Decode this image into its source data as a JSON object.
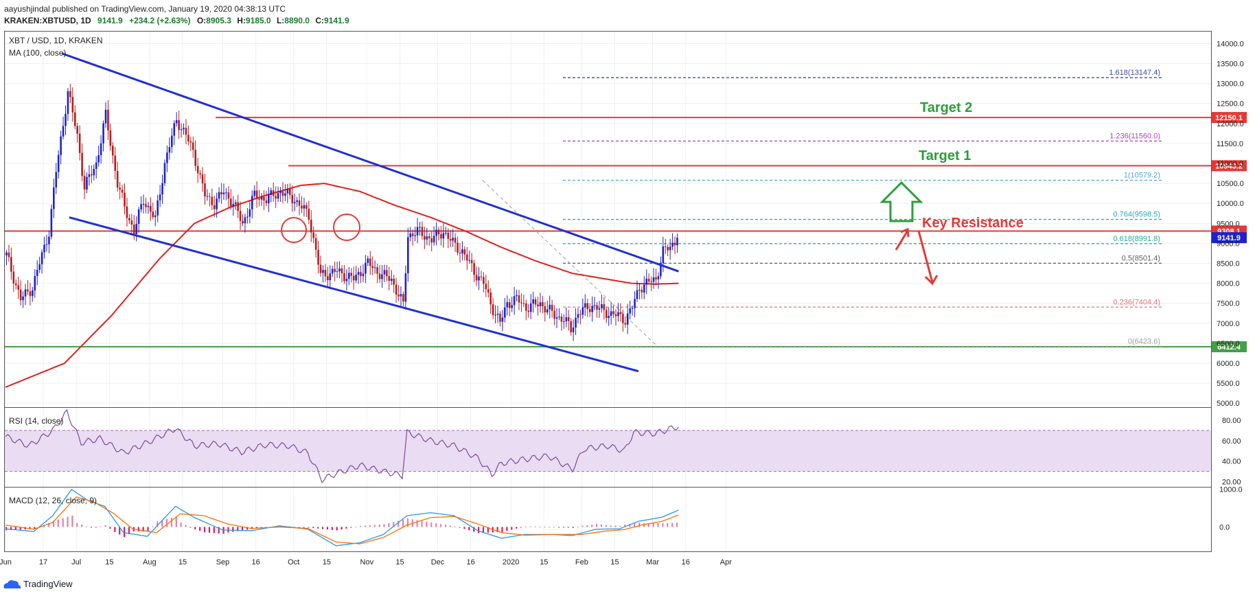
{
  "header": {
    "publisher_line": "aayushjindal published on TradingView.com, January 19, 2020 04:38:13 UTC",
    "symbol": "KRAKEN:XBTUSD, 1D",
    "last": "9141.9",
    "change": "+234.2 (+2.63%)",
    "open_label": "O:",
    "open": "8905.3",
    "high_label": "H:",
    "high": "9185.0",
    "low_label": "L:",
    "low": "8890.0",
    "close_label": "C:",
    "close": "9141.9"
  },
  "main_pane": {
    "legend_symbol": "XBT / USD, 1D, KRAKEN",
    "legend_ma": "MA (100, close)"
  },
  "rsi_pane": {
    "legend": "RSI (14, close)",
    "ticks": [
      "80.00",
      "60.00",
      "40.00",
      "20.00"
    ]
  },
  "macd_pane": {
    "legend": "MACD (12, 26, close, 9)",
    "ticks": [
      "1000.0",
      "0.0"
    ]
  },
  "annotations": {
    "target2": "Target 2",
    "target1": "Target 1",
    "key_resistance": "Key Resistance"
  },
  "footer": {
    "brand": "TradingView"
  },
  "colors": {
    "up": "#1e22cc",
    "down": "#b71c1c",
    "trend": "#1f2ed6",
    "ma": "#e0201b",
    "resistance": "#e53935",
    "support": "#43a047",
    "target_text": "#2e9d3a",
    "rsi": "#7a4b99",
    "rsi_band": "#eadcf3",
    "macd": "#2196f3",
    "signal": "#ff6d00",
    "hist": "#d81b60"
  },
  "chart_data": {
    "type": "candlestick",
    "symbol": "XBT / USD, 1D, KRAKEN",
    "x_tick_labels": [
      "Jun",
      "17",
      "Jul",
      "15",
      "Aug",
      "15",
      "Sep",
      "16",
      "Oct",
      "15",
      "Nov",
      "15",
      "Dec",
      "16",
      "2020",
      "15",
      "Feb",
      "15",
      "Mar",
      "16",
      "Apr"
    ],
    "y_ticks": [
      "14000.0",
      "13500.0",
      "13000.0",
      "12500.0",
      "12000.0",
      "11500.0",
      "11000.0",
      "10500.0",
      "10000.0",
      "9500.0",
      "9000.0",
      "8500.0",
      "8000.0",
      "7500.0",
      "7000.0",
      "6500.0",
      "6000.0",
      "5500.0",
      "5000.0"
    ],
    "ylim": [
      4900,
      14300
    ],
    "price_path": [
      [
        0,
        8700
      ],
      [
        6,
        7600
      ],
      [
        11,
        7900
      ],
      [
        18,
        9300
      ],
      [
        21,
        10800
      ],
      [
        26,
        12800
      ],
      [
        30,
        11700
      ],
      [
        33,
        10400
      ],
      [
        38,
        11000
      ],
      [
        42,
        12200
      ],
      [
        47,
        10500
      ],
      [
        50,
        9900
      ],
      [
        54,
        9300
      ],
      [
        58,
        10100
      ],
      [
        63,
        9600
      ],
      [
        67,
        11000
      ],
      [
        72,
        12100
      ],
      [
        76,
        11700
      ],
      [
        79,
        11300
      ],
      [
        84,
        10200
      ],
      [
        88,
        10000
      ],
      [
        92,
        10300
      ],
      [
        96,
        10000
      ],
      [
        100,
        9500
      ],
      [
        105,
        10200
      ],
      [
        110,
        10100
      ],
      [
        116,
        10300
      ],
      [
        122,
        10100
      ],
      [
        128,
        9700
      ],
      [
        133,
        8200
      ],
      [
        140,
        8300
      ],
      [
        147,
        8100
      ],
      [
        153,
        8500
      ],
      [
        159,
        8200
      ],
      [
        163,
        8100
      ],
      [
        168,
        7450
      ],
      [
        170,
        9200
      ],
      [
        174,
        9300
      ],
      [
        180,
        9100
      ],
      [
        185,
        9300
      ],
      [
        189,
        9000
      ],
      [
        193,
        8800
      ],
      [
        198,
        8300
      ],
      [
        202,
        8000
      ],
      [
        205,
        7500
      ],
      [
        209,
        7000
      ],
      [
        212,
        7500
      ],
      [
        216,
        7600
      ],
      [
        220,
        7400
      ],
      [
        226,
        7500
      ],
      [
        232,
        7200
      ],
      [
        236,
        7100
      ],
      [
        239,
        6850
      ],
      [
        242,
        7250
      ],
      [
        248,
        7450
      ],
      [
        253,
        7300
      ],
      [
        258,
        7200
      ],
      [
        262,
        7100
      ],
      [
        265,
        7400
      ],
      [
        268,
        7900
      ],
      [
        271,
        8000
      ],
      [
        275,
        8100
      ],
      [
        278,
        8800
      ],
      [
        281,
        8900
      ],
      [
        284,
        9141.9
      ]
    ],
    "moving_average_100": [
      [
        0,
        5400
      ],
      [
        25,
        6000
      ],
      [
        45,
        7200
      ],
      [
        65,
        8600
      ],
      [
        80,
        9500
      ],
      [
        95,
        9900
      ],
      [
        110,
        10200
      ],
      [
        125,
        10450
      ],
      [
        135,
        10500
      ],
      [
        150,
        10300
      ],
      [
        165,
        9950
      ],
      [
        180,
        9650
      ],
      [
        195,
        9300
      ],
      [
        210,
        8900
      ],
      [
        225,
        8550
      ],
      [
        240,
        8250
      ],
      [
        255,
        8100
      ],
      [
        265,
        8000
      ],
      [
        275,
        7980
      ],
      [
        285,
        8000
      ]
    ],
    "horizontal_levels": [
      {
        "label": "9308.1",
        "price": 9308.1,
        "role": "key resistance"
      },
      {
        "label": "10943.2",
        "price": 10943.2,
        "role": "target 1"
      },
      {
        "label": "12150.1",
        "price": 12150.1,
        "role": "target 2"
      },
      {
        "label": "6412.4",
        "price": 6412.4,
        "role": "support"
      }
    ],
    "last_price_label": "9141.9",
    "fibonacci": [
      {
        "label": "1.618(13147.4)",
        "price": 13147.4
      },
      {
        "label": "1.236(11560.0)",
        "price": 11560.0
      },
      {
        "label": "1(10579.2)",
        "price": 10579.2
      },
      {
        "label": "0.764(9598.5)",
        "price": 9598.5
      },
      {
        "label": "0.618(8991.8)",
        "price": 8991.8
      },
      {
        "label": "0.5(8501.4)",
        "price": 8501.4
      },
      {
        "label": "0.236(7404.4)",
        "price": 7404.4
      },
      {
        "label": "0(6423.6)",
        "price": 6423.6
      }
    ],
    "trendlines": [
      {
        "from": [
          24,
          13750
        ],
        "to": [
          285,
          8300
        ]
      },
      {
        "from": [
          27,
          9650
        ],
        "to": [
          268,
          5800
        ]
      }
    ],
    "rsi": {
      "ylim": [
        15,
        92
      ],
      "upper_band": 70,
      "lower_band": 30,
      "values": [
        [
          0,
          64
        ],
        [
          10,
          55
        ],
        [
          20,
          70
        ],
        [
          26,
          88
        ],
        [
          32,
          58
        ],
        [
          40,
          62
        ],
        [
          50,
          48
        ],
        [
          60,
          58
        ],
        [
          72,
          72
        ],
        [
          80,
          55
        ],
        [
          90,
          57
        ],
        [
          100,
          49
        ],
        [
          110,
          56
        ],
        [
          120,
          55
        ],
        [
          128,
          48
        ],
        [
          134,
          22
        ],
        [
          140,
          28
        ],
        [
          150,
          36
        ],
        [
          160,
          30
        ],
        [
          168,
          26
        ],
        [
          170,
          68
        ],
        [
          180,
          60
        ],
        [
          190,
          55
        ],
        [
          200,
          43
        ],
        [
          206,
          27
        ],
        [
          210,
          38
        ],
        [
          220,
          42
        ],
        [
          230,
          45
        ],
        [
          240,
          32
        ],
        [
          245,
          52
        ],
        [
          255,
          55
        ],
        [
          262,
          50
        ],
        [
          266,
          68
        ],
        [
          275,
          67
        ],
        [
          282,
          72
        ],
        [
          285,
          74
        ]
      ]
    },
    "macd": {
      "ylim": [
        -650,
        1050
      ],
      "macd_line": [
        [
          0,
          -50
        ],
        [
          12,
          -120
        ],
        [
          20,
          300
        ],
        [
          28,
          1000
        ],
        [
          35,
          700
        ],
        [
          42,
          550
        ],
        [
          50,
          -150
        ],
        [
          60,
          -250
        ],
        [
          72,
          550
        ],
        [
          80,
          250
        ],
        [
          92,
          -80
        ],
        [
          104,
          -100
        ],
        [
          116,
          30
        ],
        [
          128,
          -60
        ],
        [
          140,
          -500
        ],
        [
          150,
          -420
        ],
        [
          160,
          -200
        ],
        [
          170,
          300
        ],
        [
          180,
          380
        ],
        [
          190,
          300
        ],
        [
          200,
          -100
        ],
        [
          210,
          -300
        ],
        [
          220,
          -200
        ],
        [
          232,
          -200
        ],
        [
          240,
          -230
        ],
        [
          250,
          -60
        ],
        [
          260,
          -50
        ],
        [
          268,
          150
        ],
        [
          278,
          260
        ],
        [
          285,
          450
        ]
      ],
      "signal_line": [
        [
          0,
          50
        ],
        [
          12,
          -60
        ],
        [
          20,
          120
        ],
        [
          30,
          800
        ],
        [
          38,
          650
        ],
        [
          46,
          350
        ],
        [
          54,
          -60
        ],
        [
          64,
          -150
        ],
        [
          74,
          350
        ],
        [
          84,
          300
        ],
        [
          94,
          80
        ],
        [
          104,
          -40
        ],
        [
          116,
          0
        ],
        [
          128,
          -40
        ],
        [
          140,
          -400
        ],
        [
          150,
          -450
        ],
        [
          160,
          -280
        ],
        [
          170,
          50
        ],
        [
          180,
          250
        ],
        [
          190,
          280
        ],
        [
          200,
          80
        ],
        [
          210,
          -150
        ],
        [
          220,
          -220
        ],
        [
          232,
          -200
        ],
        [
          244,
          -200
        ],
        [
          254,
          -110
        ],
        [
          262,
          -70
        ],
        [
          270,
          60
        ],
        [
          278,
          150
        ],
        [
          285,
          320
        ]
      ]
    }
  }
}
